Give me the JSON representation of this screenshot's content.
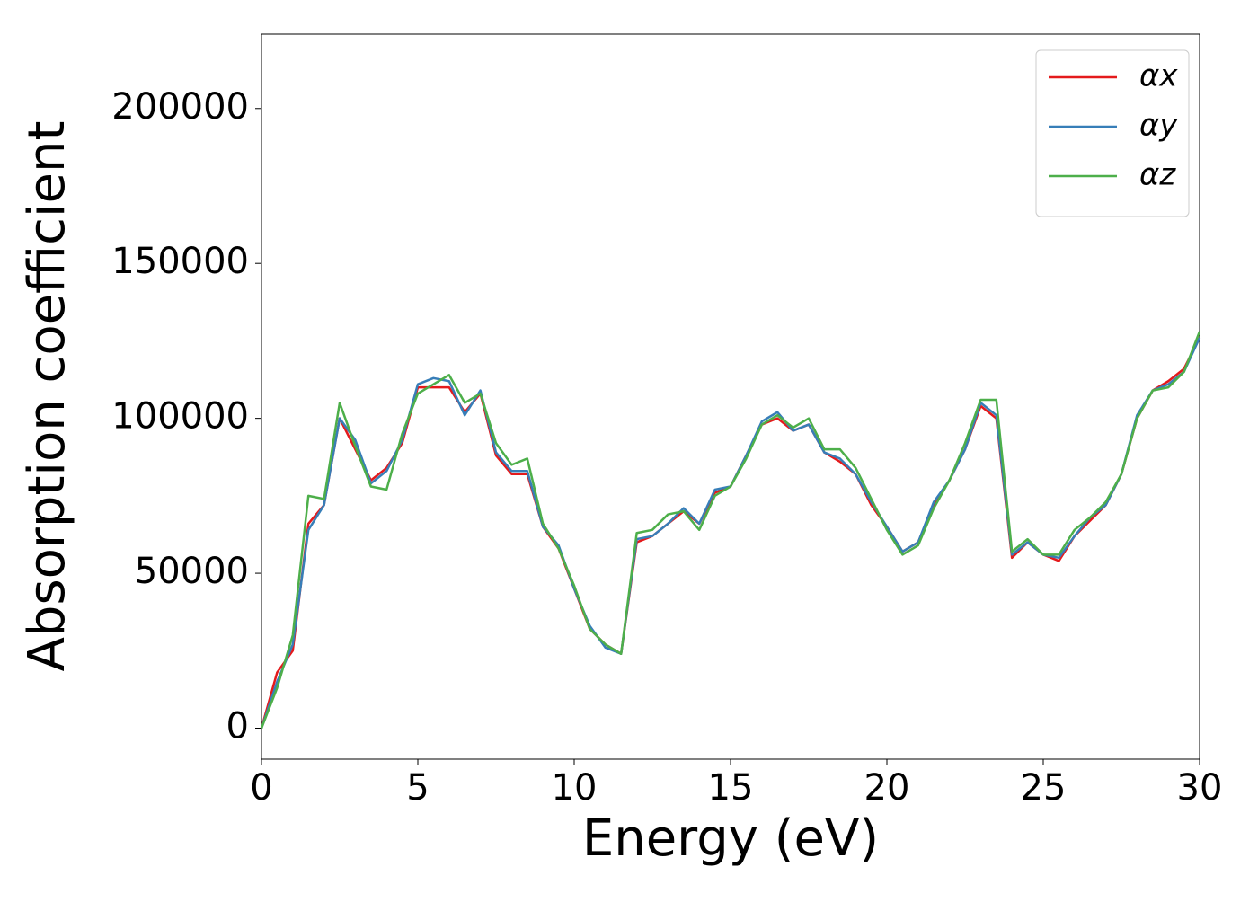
{
  "chart_data": {
    "type": "line",
    "xlabel": "Energy (eV)",
    "ylabel": "Absorption coefficient",
    "x": [
      0,
      0.5,
      1,
      1.5,
      2,
      2.5,
      3,
      3.5,
      4,
      4.5,
      5,
      5.5,
      6,
      6.5,
      7,
      7.5,
      8,
      8.5,
      9,
      9.5,
      10,
      10.5,
      11,
      11.5,
      12,
      12.5,
      13,
      13.5,
      14,
      14.5,
      15,
      15.5,
      16,
      16.5,
      17,
      17.5,
      18,
      18.5,
      19,
      19.5,
      20,
      20.5,
      21,
      21.5,
      22,
      22.5,
      23,
      23.5,
      24,
      24.5,
      25,
      25.5,
      26,
      26.5,
      27,
      27.5,
      28,
      28.5,
      29,
      29.5,
      30
    ],
    "series": [
      {
        "name": "αx",
        "color": "#e41a1c",
        "values": [
          0,
          18000,
          25000,
          66000,
          72000,
          100000,
          90000,
          80000,
          84000,
          92000,
          110000,
          110000,
          110000,
          102000,
          108000,
          88000,
          82000,
          82000,
          65000,
          58000,
          45000,
          32000,
          27000,
          24000,
          60000,
          62000,
          66000,
          70000,
          66000,
          76000,
          78000,
          88000,
          98000,
          100000,
          96000,
          98000,
          89000,
          86000,
          82000,
          72000,
          65000,
          57000,
          60000,
          72000,
          80000,
          90000,
          104000,
          100000,
          55000,
          60000,
          56000,
          54000,
          62000,
          67000,
          72000,
          82000,
          100000,
          109000,
          112000,
          116000,
          126000
        ]
      },
      {
        "name": "αy",
        "color": "#377eb8",
        "values": [
          0,
          15000,
          27000,
          64000,
          72000,
          100000,
          93000,
          79000,
          83000,
          93000,
          111000,
          113000,
          112000,
          101000,
          109000,
          89000,
          83000,
          83000,
          65000,
          59000,
          45000,
          33000,
          26000,
          24000,
          61000,
          62000,
          66000,
          71000,
          66000,
          77000,
          78000,
          88000,
          99000,
          102000,
          96000,
          98000,
          89000,
          87000,
          82000,
          73000,
          65000,
          57000,
          60000,
          73000,
          80000,
          90000,
          105000,
          101000,
          56000,
          60000,
          56000,
          55000,
          62000,
          68000,
          72000,
          82000,
          101000,
          109000,
          111000,
          115000,
          126000
        ]
      },
      {
        "name": "αz",
        "color": "#4daf4a",
        "values": [
          0,
          13000,
          30000,
          75000,
          74000,
          105000,
          91000,
          78000,
          77000,
          95000,
          108000,
          111000,
          114000,
          105000,
          108000,
          92000,
          85000,
          87000,
          66000,
          58000,
          46000,
          32000,
          27000,
          24000,
          63000,
          64000,
          69000,
          70000,
          64000,
          75000,
          78000,
          87000,
          98000,
          101000,
          97000,
          100000,
          90000,
          90000,
          84000,
          74000,
          64000,
          56000,
          59000,
          71000,
          80000,
          92000,
          106000,
          106000,
          57000,
          61000,
          56000,
          56000,
          64000,
          68000,
          73000,
          82000,
          100000,
          109000,
          110000,
          115000,
          128000
        ]
      }
    ],
    "xlim": [
      0,
      30
    ],
    "xticks": [
      0,
      5,
      10,
      15,
      20,
      25,
      30
    ],
    "ylim": [
      -10000,
      224000
    ],
    "yticks": [
      0,
      50000,
      100000,
      150000,
      200000
    ],
    "legend": "upper right"
  }
}
